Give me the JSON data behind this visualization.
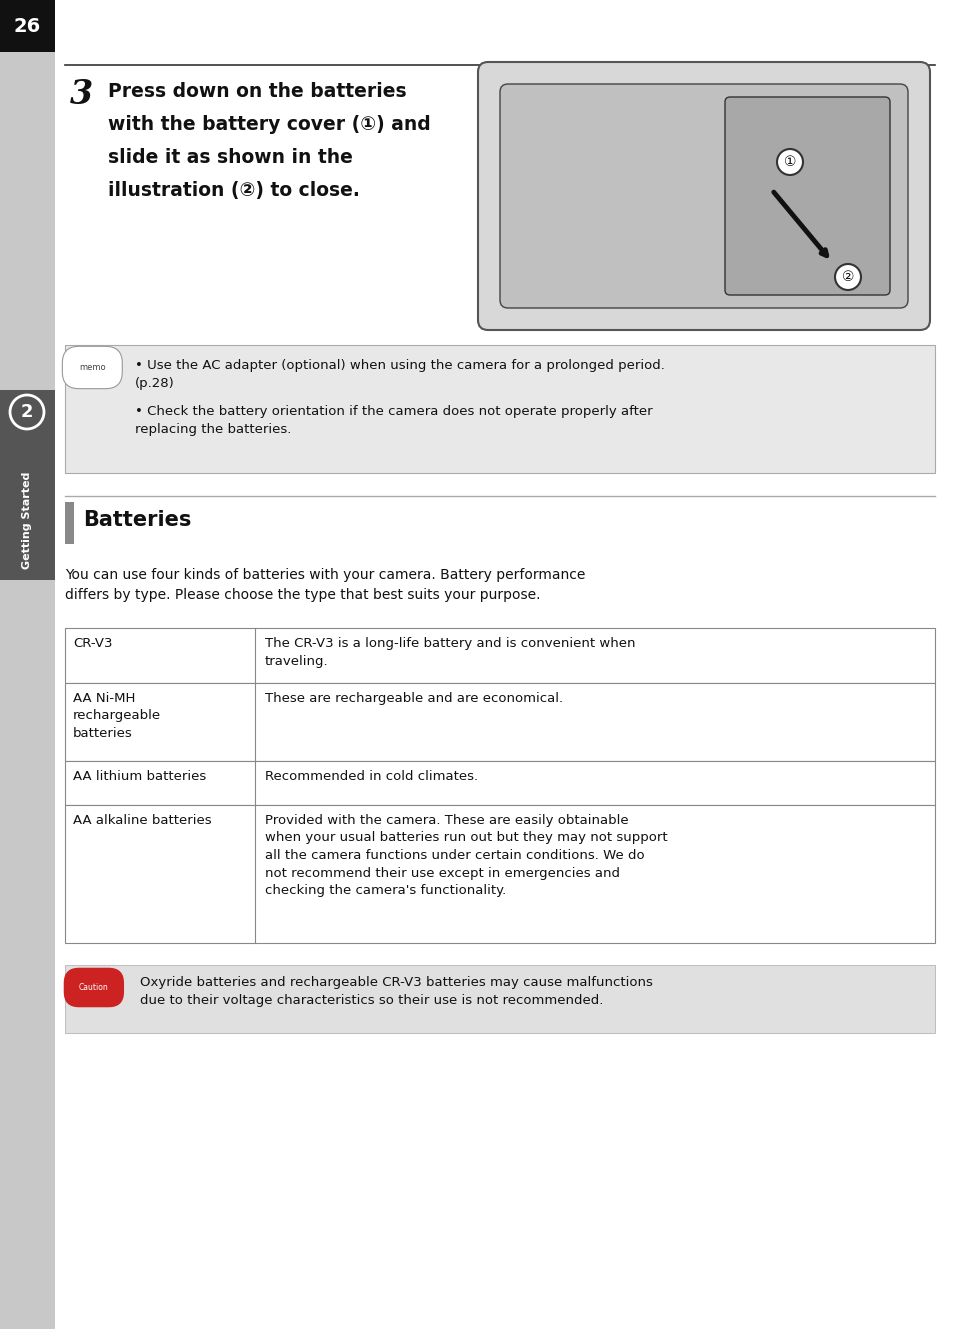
{
  "page_num": "26",
  "sidebar_color": "#404040",
  "sidebar_text": "Getting Started",
  "sidebar_chapter": "2",
  "bg_color": "#c8c8c8",
  "page_bg": "#ffffff",
  "step_num": "3",
  "step_text_lines": [
    "Press down on the batteries",
    "with the battery cover (①) and",
    "slide it as shown in the",
    "illustration (②) to close."
  ],
  "memo_bg": "#e8e8e8",
  "memo_bullets": [
    "Use the AC adapter (optional) when using the camera for a prolonged period.\n(p.28)",
    "Check the battery orientation if the camera does not operate properly after\nreplacing the batteries."
  ],
  "section_title": "Batteries",
  "intro_text": "You can use four kinds of batteries with your camera. Battery performance\ndiffers by type. Please choose the type that best suits your purpose.",
  "table_rows": [
    [
      "CR-V3",
      "The CR-V3 is a long-life battery and is convenient when\ntraveling."
    ],
    [
      "AA Ni-MH\nrechargeable\nbatteries",
      "These are rechargeable and are economical."
    ],
    [
      "AA lithium batteries",
      "Recommended in cold climates."
    ],
    [
      "AA alkaline batteries",
      "Provided with the camera. These are easily obtainable\nwhen your usual batteries run out but they may not support\nall the camera functions under certain conditions. We do\nnot recommend their use except in emergencies and\nchecking the camera's functionality."
    ]
  ],
  "caution_bg": "#e0e0e0",
  "caution_text": "Oxyride batteries and rechargeable CR-V3 batteries may cause malfunctions\ndue to their voltage characteristics so their use is not recommended.",
  "table_border_color": "#888888",
  "font_size_body": 9.5,
  "font_size_step": 13.5,
  "font_size_section": 15
}
